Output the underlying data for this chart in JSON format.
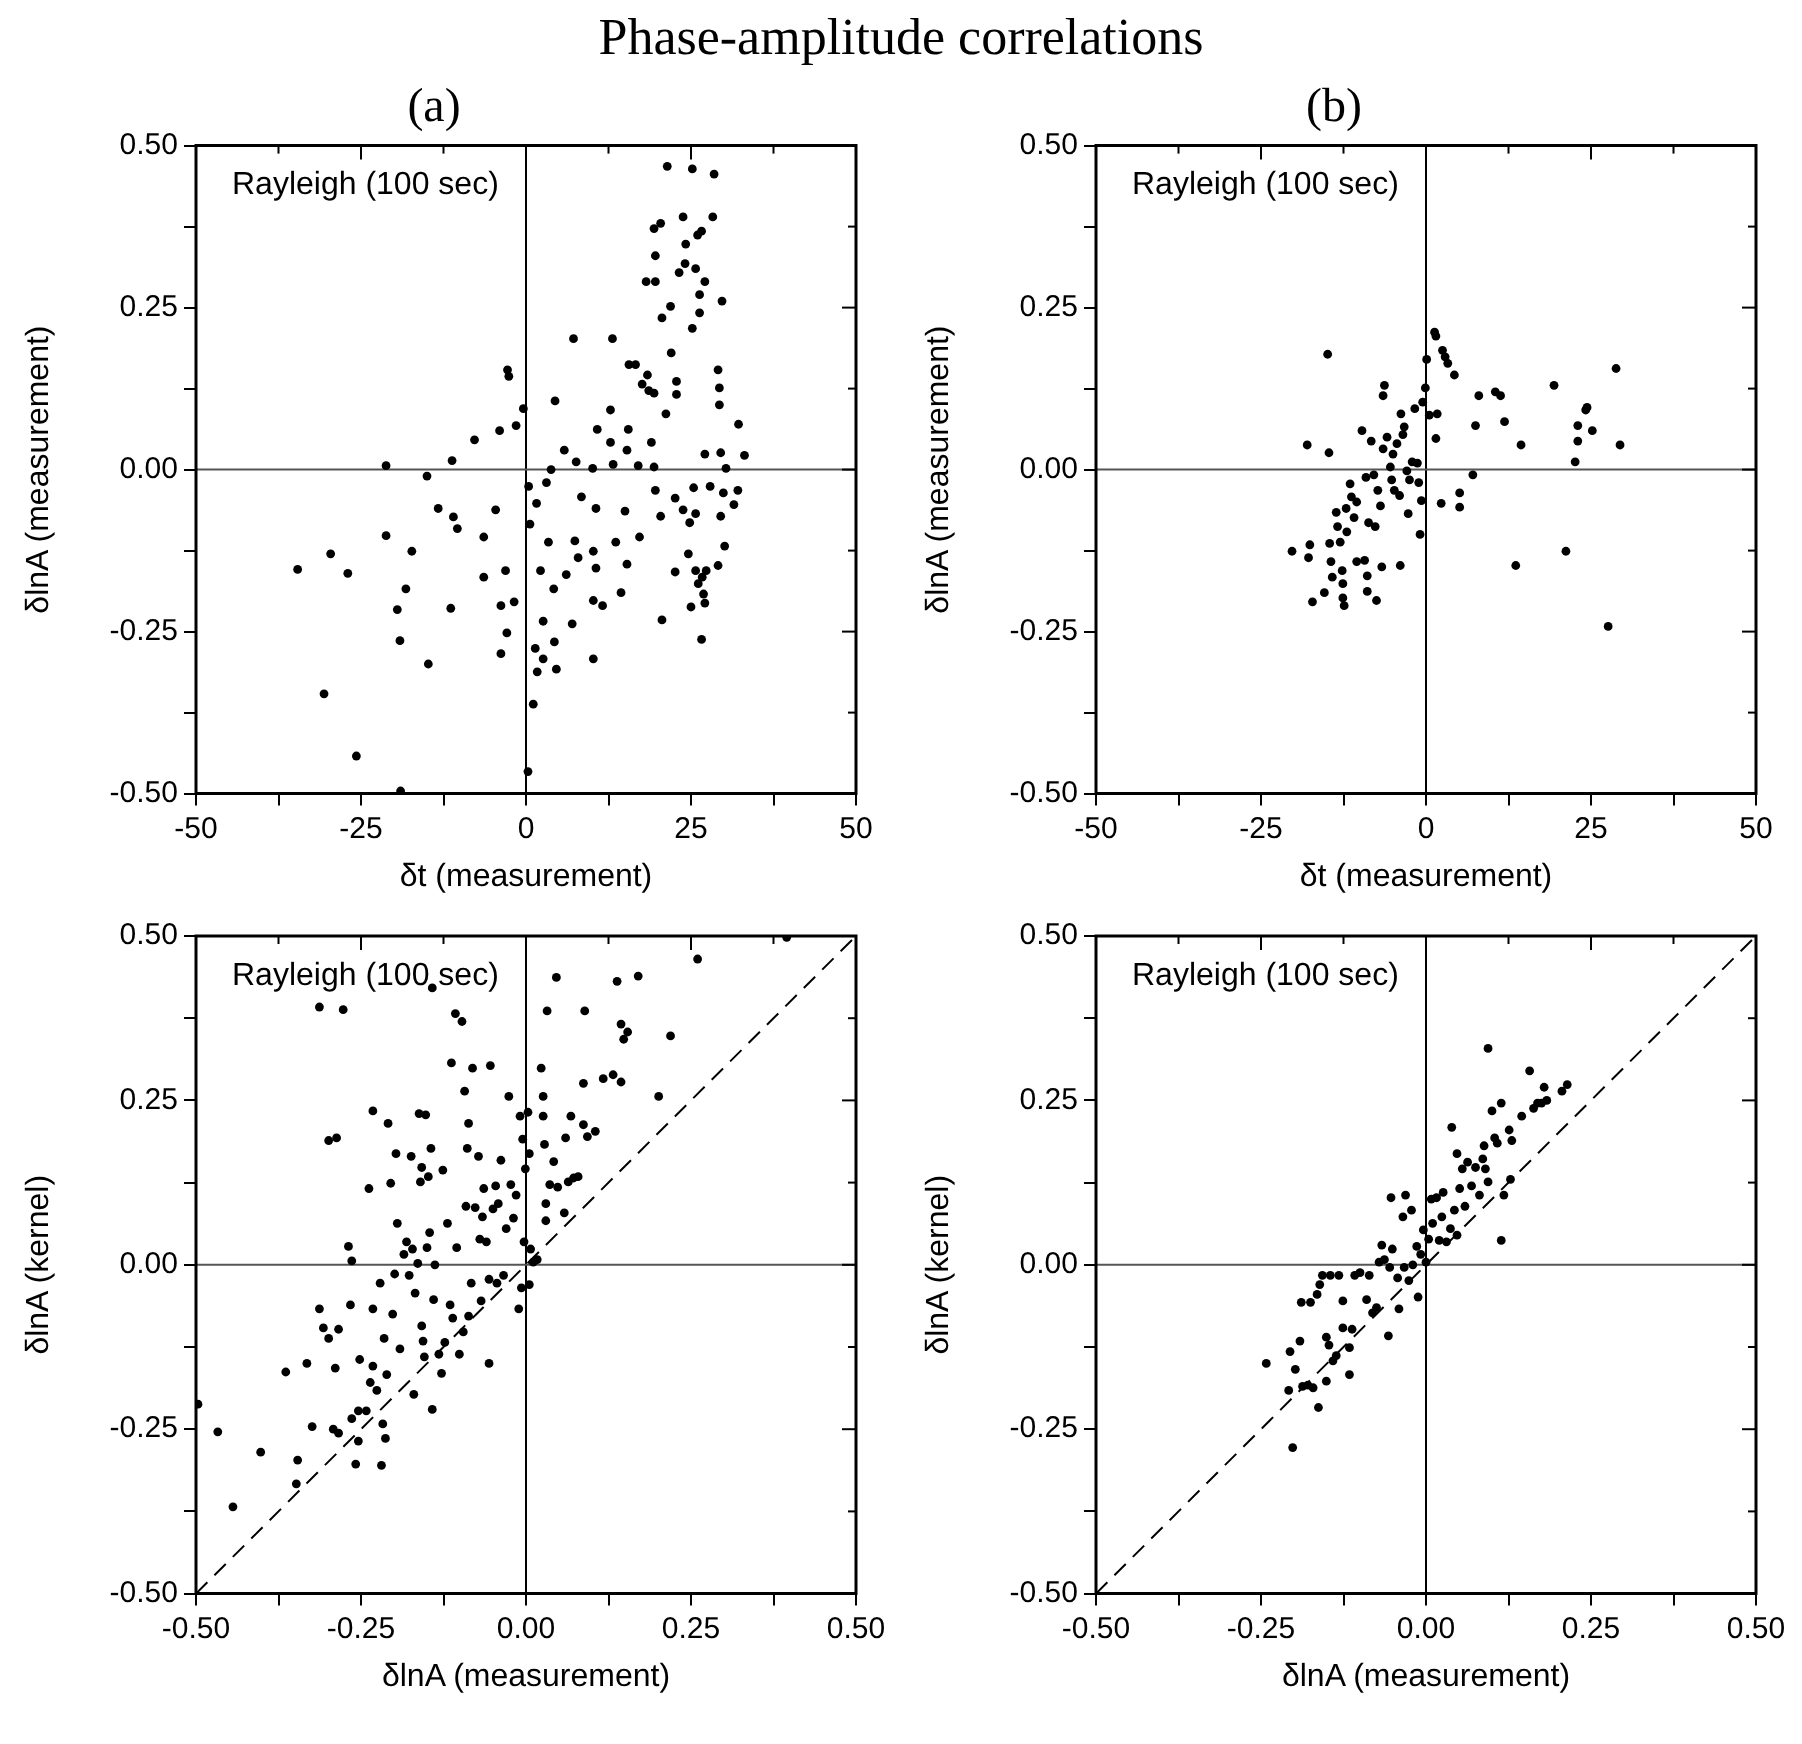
{
  "chart_data": [
    {
      "type": "scatter",
      "title": "Phase-amplitude correlations",
      "subtitle": "(a)",
      "xlabel": "δt (measurement)",
      "ylabel": "δlnA (measurement)",
      "annotations": [
        "Rayleigh (100 sec)"
      ],
      "marker": "circle",
      "grid": false,
      "xlim": [
        -50,
        50
      ],
      "xticks": [
        -50,
        {
          "value": -37.5,
          "label": null
        },
        -25,
        {
          "value": -12.5,
          "label": null
        },
        0,
        {
          "value": 12.5,
          "label": null
        },
        25,
        {
          "value": 37.5,
          "label": null
        },
        50
      ],
      "ylim": [
        -0.5,
        0.5
      ],
      "yticks": [
        {
          "value": -0.5,
          "label": "-0.50"
        },
        {
          "value": -0.375,
          "label": null
        },
        {
          "value": -0.25,
          "label": "-0.25"
        },
        {
          "value": -0.125,
          "label": null
        },
        {
          "value": 0,
          "label": "0.00"
        },
        {
          "value": 0.125,
          "label": null
        },
        {
          "value": 0.25,
          "label": "0.25"
        },
        {
          "value": 0.375,
          "label": null
        },
        {
          "value": 0.5,
          "label": "0.50"
        }
      ],
      "ref_lines": [
        {
          "axis": "x",
          "value": 0,
          "color": "#000000"
        },
        {
          "axis": "y",
          "value": 0,
          "color": "#555555"
        }
      ],
      "series": [
        {
          "color": "#000000",
          "x": [
            -34.6,
            -29.6,
            -27.0,
            -30.6,
            -25.7,
            -19.0,
            -21.2,
            -21.2,
            -17.3,
            -18.2,
            -19.5,
            -19.1,
            -14.8,
            -15.0,
            -13.3,
            -11.2,
            -11.0,
            -10.4,
            -11.4,
            -7.8,
            -6.4,
            -6.4,
            -4.0,
            -2.8,
            -2.6,
            -1.5,
            -0.4,
            -4.6,
            -3.8,
            -3.8,
            -2.9,
            -3.1,
            -1.8,
            0.4,
            0.6,
            0.3,
            1.1,
            1.4,
            1.7,
            2.6,
            2.2,
            2.6,
            1.6,
            3.1,
            3.8,
            4.4,
            4.2,
            4.6,
            4.3,
            3.4,
            6.1,
            5.8,
            7.2,
            7.0,
            7.6,
            8.4,
            7.4,
            7.9,
            10.1,
            10.6,
            10.2,
            10.2,
            10.2,
            10.8,
            10.6,
            11.6,
            12.8,
            12.8,
            13.1,
            13.2,
            13.6,
            14.4,
            15.0,
            15.6,
            15.5,
            15.3,
            15.3,
            16.6,
            17.0,
            17.2,
            17.6,
            18.4,
            18.6,
            19.4,
            18.2,
            19.6,
            19.0,
            19.4,
            19.6,
            20.4,
            20.6,
            19.4,
            19.6,
            20.4,
            21.4,
            20.6,
            21.2,
            21.9,
            22.0,
            22.6,
            22.6,
            22.8,
            22.8,
            23.2,
            23.8,
            24.2,
            24.1,
            23.8,
            24.8,
            24.6,
            25.0,
            25.2,
            25.2,
            25.4,
            25.7,
            25.7,
            26.0,
            26.6,
            26.3,
            26.3,
            25.7,
            26.1,
            26.7,
            26.9,
            26.6,
            27.1,
            27.1,
            27.3,
            27.1,
            27.9,
            28.3,
            28.5,
            29.1,
            29.3,
            29.3,
            29.1,
            29.5,
            29.5,
            29.7,
            29.9,
            30.3,
            30.1,
            31.5,
            32.1,
            32.2,
            33.1
          ],
          "values": [
            -0.154,
            -0.13,
            -0.16,
            -0.346,
            -0.442,
            -0.496,
            0.006,
            -0.102,
            -0.126,
            -0.184,
            -0.216,
            -0.264,
            -0.3,
            -0.01,
            -0.06,
            0.014,
            -0.073,
            -0.091,
            -0.214,
            0.046,
            -0.104,
            -0.166,
            0.06,
            0.154,
            0.144,
            0.068,
            0.094,
            -0.062,
            -0.21,
            -0.284,
            -0.252,
            -0.156,
            -0.204,
            -0.026,
            -0.084,
            -0.466,
            -0.362,
            -0.276,
            -0.312,
            -0.292,
            -0.156,
            -0.234,
            -0.052,
            -0.02,
            0.0,
            0.106,
            -0.184,
            -0.308,
            -0.266,
            -0.112,
            -0.162,
            0.03,
            0.202,
            -0.238,
            0.012,
            -0.042,
            -0.11,
            -0.136,
            0.002,
            -0.06,
            -0.126,
            -0.202,
            -0.292,
            0.062,
            -0.152,
            -0.21,
            0.092,
            0.042,
            0.202,
            0.008,
            -0.112,
            -0.19,
            -0.064,
            0.162,
            0.062,
            0.03,
            -0.146,
            0.162,
            0.006,
            -0.104,
            0.132,
            0.146,
            0.122,
            0.118,
            0.29,
            0.29,
            0.042,
            0.004,
            -0.032,
            -0.072,
            -0.232,
            0.372,
            0.33,
            0.38,
            0.468,
            0.234,
            0.086,
            0.252,
            0.18,
            -0.044,
            -0.158,
            0.136,
            0.116,
            0.304,
            0.39,
            0.348,
            0.318,
            -0.062,
            -0.082,
            -0.13,
            -0.212,
            0.464,
            0.218,
            -0.028,
            -0.068,
            0.31,
            0.362,
            0.368,
            0.27,
            0.242,
            -0.156,
            -0.176,
            -0.166,
            -0.192,
            -0.262,
            0.29,
            0.024,
            -0.156,
            -0.206,
            -0.026,
            0.39,
            0.456,
            0.154,
            0.126,
            0.1,
            -0.148,
            0.026,
            -0.072,
            0.26,
            -0.036,
            0.002,
            -0.118,
            -0.054,
            -0.032,
            0.07,
            0.022
          ]
        }
      ]
    },
    {
      "type": "scatter",
      "subtitle": "(b)",
      "xlabel": "δt (measurement)",
      "ylabel": "δlnA (measurement)",
      "annotations": [
        "Rayleigh (100 sec)"
      ],
      "marker": "circle",
      "grid": false,
      "xlim": [
        -50,
        50
      ],
      "xticks": [
        -50,
        {
          "value": -37.5,
          "label": null
        },
        -25,
        {
          "value": -12.5,
          "label": null
        },
        0,
        {
          "value": 12.5,
          "label": null
        },
        25,
        {
          "value": 37.5,
          "label": null
        },
        50
      ],
      "ylim": [
        -0.5,
        0.5
      ],
      "yticks": [
        {
          "value": -0.5,
          "label": "-0.50"
        },
        {
          "value": -0.375,
          "label": null
        },
        {
          "value": -0.25,
          "label": "-0.25"
        },
        {
          "value": -0.125,
          "label": null
        },
        {
          "value": 0,
          "label": "0.00"
        },
        {
          "value": 0.125,
          "label": null
        },
        {
          "value": 0.25,
          "label": "0.25"
        },
        {
          "value": 0.375,
          "label": null
        },
        {
          "value": 0.5,
          "label": "0.50"
        }
      ],
      "ref_lines": [
        {
          "axis": "x",
          "value": 0,
          "color": "#000000"
        },
        {
          "axis": "y",
          "value": 0,
          "color": "#555555"
        }
      ],
      "series": [
        {
          "color": "#000000",
          "x": [
            -20.3,
            -18.0,
            -17.6,
            -17.8,
            -17.2,
            -15.4,
            -14.9,
            -14.7,
            -14.6,
            -14.4,
            -14.2,
            -13.6,
            -13.4,
            -13.0,
            -12.7,
            -12.6,
            -12.6,
            -12.4,
            -12.1,
            -12.0,
            -11.5,
            -11.3,
            -10.9,
            -10.5,
            -10.5,
            -9.7,
            -9.3,
            -9.1,
            -8.9,
            -8.9,
            -8.7,
            -8.3,
            -7.9,
            -7.7,
            -7.5,
            -7.3,
            -6.9,
            -6.7,
            -6.5,
            -6.3,
            -6.5,
            -5.9,
            -5.4,
            -5.2,
            -5.0,
            -4.8,
            -4.4,
            -4.0,
            -3.8,
            -3.9,
            -3.5,
            -3.3,
            -2.9,
            -2.7,
            -2.5,
            -2.1,
            -1.7,
            -1.3,
            -1.1,
            -0.9,
            -0.7,
            -0.5,
            -0.1,
            0.1,
            0.5,
            1.3,
            1.5,
            1.5,
            1.7,
            2.3,
            2.5,
            2.9,
            3.3,
            4.3,
            5.1,
            5.1,
            7.1,
            7.5,
            8.0,
            10.5,
            11.3,
            11.9,
            13.6,
            14.4,
            19.4,
            21.2,
            22.6,
            23.0,
            23.0,
            24.2,
            24.4,
            25.2,
            27.6,
            28.8,
            29.4
          ],
          "values": [
            -0.126,
            0.038,
            -0.116,
            -0.136,
            -0.204,
            -0.19,
            0.178,
            0.026,
            -0.114,
            -0.142,
            -0.166,
            -0.066,
            -0.088,
            -0.112,
            -0.156,
            -0.176,
            -0.198,
            -0.21,
            -0.06,
            -0.096,
            -0.022,
            -0.042,
            -0.074,
            -0.05,
            -0.142,
            0.06,
            -0.14,
            -0.012,
            -0.164,
            -0.188,
            -0.082,
            0.044,
            -0.008,
            -0.088,
            -0.202,
            -0.032,
            -0.056,
            -0.15,
            0.114,
            0.13,
            0.032,
            0.05,
            0.004,
            -0.016,
            0.024,
            -0.032,
            0.04,
            -0.04,
            0.086,
            -0.148,
            0.054,
            0.066,
            -0.002,
            -0.068,
            -0.016,
            0.012,
            0.094,
            0.01,
            -0.02,
            -0.1,
            -0.048,
            0.104,
            0.126,
            0.17,
            0.084,
            0.212,
            0.206,
            0.048,
            0.086,
            -0.052,
            0.184,
            0.174,
            0.164,
            0.146,
            -0.036,
            -0.058,
            -0.008,
            0.068,
            0.114,
            0.12,
            0.114,
            0.074,
            -0.148,
            0.038,
            0.13,
            -0.126,
            0.012,
            0.068,
            0.044,
            0.092,
            0.096,
            0.06,
            -0.242,
            0.156,
            0.038
          ]
        }
      ]
    },
    {
      "type": "scatter",
      "xlabel": "δlnA (measurement)",
      "ylabel": "δlnA (kernel)",
      "annotations": [
        "Rayleigh (100 sec)"
      ],
      "marker": "circle",
      "grid": false,
      "xlim": [
        -0.5,
        0.5
      ],
      "xticks": [
        {
          "value": -0.5,
          "label": "-0.50"
        },
        {
          "value": -0.375,
          "label": null
        },
        {
          "value": -0.25,
          "label": "-0.25"
        },
        {
          "value": -0.125,
          "label": null
        },
        {
          "value": 0,
          "label": "0.00"
        },
        {
          "value": 0.125,
          "label": null
        },
        {
          "value": 0.25,
          "label": "0.25"
        },
        {
          "value": 0.375,
          "label": null
        },
        {
          "value": 0.5,
          "label": "0.50"
        }
      ],
      "ylim": [
        -0.5,
        0.5
      ],
      "yticks": [
        {
          "value": -0.5,
          "label": "-0.50"
        },
        {
          "value": -0.375,
          "label": null
        },
        {
          "value": -0.25,
          "label": "-0.25"
        },
        {
          "value": -0.125,
          "label": null
        },
        {
          "value": 0,
          "label": "0.00"
        },
        {
          "value": 0.125,
          "label": null
        },
        {
          "value": 0.25,
          "label": "0.25"
        },
        {
          "value": 0.375,
          "label": null
        },
        {
          "value": 0.5,
          "label": "0.50"
        }
      ],
      "ref_lines": [
        {
          "axis": "x",
          "value": 0,
          "color": "#000000"
        },
        {
          "axis": "y",
          "value": 0,
          "color": "#555555"
        }
      ],
      "series": [
        {
          "color": "#000000",
          "x": [
            -0.497,
            -0.467,
            -0.444,
            -0.402,
            -0.364,
            -0.346,
            -0.348,
            -0.332,
            -0.324,
            -0.313,
            -0.313,
            -0.307,
            -0.299,
            -0.299,
            -0.292,
            -0.289,
            -0.284,
            -0.284,
            -0.287,
            -0.277,
            -0.269,
            -0.266,
            -0.264,
            -0.264,
            -0.258,
            -0.254,
            -0.254,
            -0.252,
            -0.242,
            -0.238,
            -0.236,
            -0.232,
            -0.232,
            -0.232,
            -0.226,
            -0.221,
            -0.219,
            -0.217,
            -0.215,
            -0.213,
            -0.211,
            -0.209,
            -0.205,
            -0.202,
            -0.199,
            -0.197,
            -0.195,
            -0.191,
            -0.185,
            -0.181,
            -0.177,
            -0.174,
            -0.172,
            -0.17,
            -0.168,
            -0.164,
            -0.162,
            -0.158,
            -0.16,
            -0.158,
            -0.156,
            -0.154,
            -0.152,
            -0.15,
            -0.148,
            -0.146,
            -0.144,
            -0.142,
            -0.142,
            -0.14,
            -0.138,
            -0.132,
            -0.128,
            -0.126,
            -0.123,
            -0.119,
            -0.115,
            -0.113,
            -0.111,
            -0.107,
            -0.105,
            -0.101,
            -0.097,
            -0.095,
            -0.093,
            -0.091,
            -0.089,
            -0.087,
            -0.087,
            -0.083,
            -0.081,
            -0.077,
            -0.072,
            -0.07,
            -0.068,
            -0.066,
            -0.064,
            -0.06,
            -0.056,
            -0.056,
            -0.054,
            -0.05,
            -0.046,
            -0.044,
            -0.042,
            -0.038,
            -0.034,
            -0.03,
            -0.026,
            -0.023,
            -0.019,
            -0.015,
            -0.011,
            -0.009,
            -0.007,
            -0.005,
            -0.003,
            -0.001,
            0.003,
            0.005,
            0.005,
            0.007,
            0.011,
            0.017,
            0.023,
            0.026,
            0.026,
            0.028,
            0.03,
            0.03,
            0.032,
            0.036,
            0.042,
            0.046,
            0.048,
            0.058,
            0.06,
            0.064,
            0.068,
            0.072,
            0.079,
            0.087,
            0.087,
            0.089,
            0.093,
            0.105,
            0.117,
            0.132,
            0.138,
            0.144,
            0.144,
            0.148,
            0.154,
            0.17,
            0.201,
            0.219,
            0.26,
            0.395
          ],
          "values": [
            -0.212,
            -0.254,
            -0.368,
            -0.285,
            -0.163,
            -0.297,
            -0.333,
            -0.15,
            -0.246,
            -0.067,
            0.392,
            -0.096,
            -0.112,
            0.189,
            -0.25,
            -0.157,
            -0.256,
            -0.098,
            0.193,
            0.388,
            0.028,
            -0.061,
            0.006,
            -0.234,
            -0.303,
            -0.268,
            -0.222,
            -0.144,
            -0.222,
            0.116,
            -0.179,
            0.234,
            -0.154,
            -0.067,
            -0.191,
            -0.028,
            -0.305,
            -0.242,
            -0.112,
            -0.264,
            -0.167,
            0.215,
            0.124,
            -0.075,
            -0.014,
            0.169,
            0.063,
            -0.128,
            0.016,
            0.035,
            -0.016,
            0.165,
            0.024,
            -0.197,
            -0.043,
            0.002,
            0.23,
            0.148,
            0.126,
            -0.093,
            -0.116,
            -0.14,
            0.228,
            0.026,
            0.134,
            0.049,
            0.177,
            0.421,
            -0.22,
            -0.053,
            0.0,
            -0.136,
            -0.165,
            0.144,
            -0.118,
            0.063,
            -0.061,
            0.307,
            -0.081,
            0.382,
            0.026,
            -0.136,
            0.37,
            -0.102,
            0.264,
            0.089,
            0.177,
            0.215,
            -0.078,
            -0.028,
            0.299,
            0.087,
            0.165,
            0.039,
            -0.055,
            0.073,
            0.116,
            0.035,
            -0.15,
            -0.022,
            0.303,
            0.085,
            0.12,
            -0.028,
            0.093,
            0.159,
            -0.016,
            0.055,
            0.256,
            0.122,
            0.071,
            0.106,
            -0.067,
            0.226,
            -0.035,
            0.191,
            0.035,
            0.146,
            0.232,
            0.169,
            -0.03,
            0.024,
            0.004,
            0.008,
            0.299,
            0.256,
            0.226,
            0.183,
            0.093,
            0.067,
            0.386,
            0.122,
            0.157,
            0.437,
            0.118,
            0.079,
            0.193,
            0.126,
            0.226,
            0.132,
            0.134,
            0.276,
            0.213,
            0.386,
            0.195,
            0.203,
            0.283,
            0.289,
            0.431,
            0.278,
            0.366,
            0.343,
            0.354,
            0.439,
            0.256,
            0.348,
            0.465,
            0.498
          ]
        },
        {
          "type": "line",
          "color": "#000000",
          "line_style": "dashed",
          "marker": "none",
          "x": [
            -0.5,
            0.5
          ],
          "values": [
            -0.5,
            0.5
          ]
        }
      ]
    },
    {
      "type": "scatter",
      "xlabel": "δlnA (measurement)",
      "ylabel": "δlnA (kernel)",
      "annotations": [
        "Rayleigh (100 sec)"
      ],
      "marker": "circle",
      "grid": false,
      "xlim": [
        -0.5,
        0.5
      ],
      "xticks": [
        {
          "value": -0.5,
          "label": "-0.50"
        },
        {
          "value": -0.375,
          "label": null
        },
        {
          "value": -0.25,
          "label": "-0.25"
        },
        {
          "value": -0.125,
          "label": null
        },
        {
          "value": 0,
          "label": "0.00"
        },
        {
          "value": 0.125,
          "label": null
        },
        {
          "value": 0.25,
          "label": "0.25"
        },
        {
          "value": 0.375,
          "label": null
        },
        {
          "value": 0.5,
          "label": "0.50"
        }
      ],
      "ylim": [
        -0.5,
        0.5
      ],
      "yticks": [
        {
          "value": -0.5,
          "label": "-0.50"
        },
        {
          "value": -0.375,
          "label": null
        },
        {
          "value": -0.25,
          "label": "-0.25"
        },
        {
          "value": -0.125,
          "label": null
        },
        {
          "value": 0,
          "label": "0.00"
        },
        {
          "value": 0.125,
          "label": null
        },
        {
          "value": 0.25,
          "label": "0.25"
        },
        {
          "value": 0.375,
          "label": null
        },
        {
          "value": 0.5,
          "label": "0.50"
        }
      ],
      "ref_lines": [
        {
          "axis": "x",
          "value": 0,
          "color": "#000000"
        },
        {
          "axis": "y",
          "value": 0,
          "color": "#555555"
        }
      ],
      "series": [
        {
          "color": "#000000",
          "x": [
            -0.242,
            -0.206,
            -0.202,
            -0.208,
            -0.198,
            -0.191,
            -0.189,
            -0.187,
            -0.179,
            -0.175,
            -0.171,
            -0.165,
            -0.163,
            -0.161,
            -0.157,
            -0.151,
            -0.151,
            -0.147,
            -0.145,
            -0.141,
            -0.136,
            -0.132,
            -0.126,
            -0.126,
            -0.116,
            -0.116,
            -0.112,
            -0.108,
            -0.1,
            -0.09,
            -0.086,
            -0.081,
            -0.075,
            -0.071,
            -0.067,
            -0.063,
            -0.057,
            -0.055,
            -0.053,
            -0.051,
            -0.043,
            -0.041,
            -0.035,
            -0.033,
            -0.031,
            -0.026,
            -0.022,
            -0.02,
            -0.014,
            -0.012,
            -0.008,
            -0.004,
            0.0,
            0.004,
            0.008,
            0.01,
            0.016,
            0.02,
            0.024,
            0.026,
            0.031,
            0.037,
            0.039,
            0.043,
            0.047,
            0.047,
            0.051,
            0.055,
            0.059,
            0.063,
            0.069,
            0.075,
            0.081,
            0.086,
            0.088,
            0.09,
            0.094,
            0.094,
            0.1,
            0.104,
            0.108,
            0.114,
            0.114,
            0.118,
            0.126,
            0.128,
            0.13,
            0.145,
            0.157,
            0.163,
            0.169,
            0.175,
            0.179,
            0.183,
            0.206,
            0.214
          ],
          "values": [
            -0.15,
            -0.132,
            -0.278,
            -0.191,
            -0.159,
            -0.116,
            -0.057,
            -0.185,
            -0.183,
            -0.057,
            -0.187,
            -0.045,
            -0.217,
            -0.03,
            -0.016,
            -0.11,
            -0.177,
            -0.122,
            -0.016,
            -0.146,
            -0.138,
            -0.016,
            -0.055,
            -0.096,
            -0.126,
            -0.167,
            -0.098,
            -0.016,
            -0.012,
            -0.053,
            -0.016,
            -0.073,
            -0.065,
            0.004,
            0.03,
            0.008,
            -0.108,
            -0.004,
            0.102,
            0.024,
            -0.02,
            -0.067,
            0.073,
            -0.004,
            0.106,
            -0.024,
            0.083,
            0.0,
            0.028,
            -0.049,
            0.016,
            0.053,
            0.004,
            0.039,
            0.1,
            0.063,
            0.102,
            0.037,
            0.073,
            0.11,
            0.035,
            0.055,
            0.209,
            0.083,
            0.045,
            0.169,
            0.116,
            0.146,
            0.089,
            0.156,
            0.12,
            0.148,
            0.106,
            0.161,
            0.181,
            0.146,
            0.329,
            0.126,
            0.234,
            0.193,
            0.185,
            0.037,
            0.246,
            0.106,
            0.205,
            0.13,
            0.189,
            0.226,
            0.295,
            0.238,
            0.246,
            0.246,
            0.27,
            0.25,
            0.264,
            0.274
          ]
        },
        {
          "type": "line",
          "color": "#000000",
          "line_style": "dashed",
          "marker": "none",
          "x": [
            -0.5,
            0.5
          ],
          "values": [
            -0.5,
            0.5
          ]
        }
      ]
    }
  ]
}
